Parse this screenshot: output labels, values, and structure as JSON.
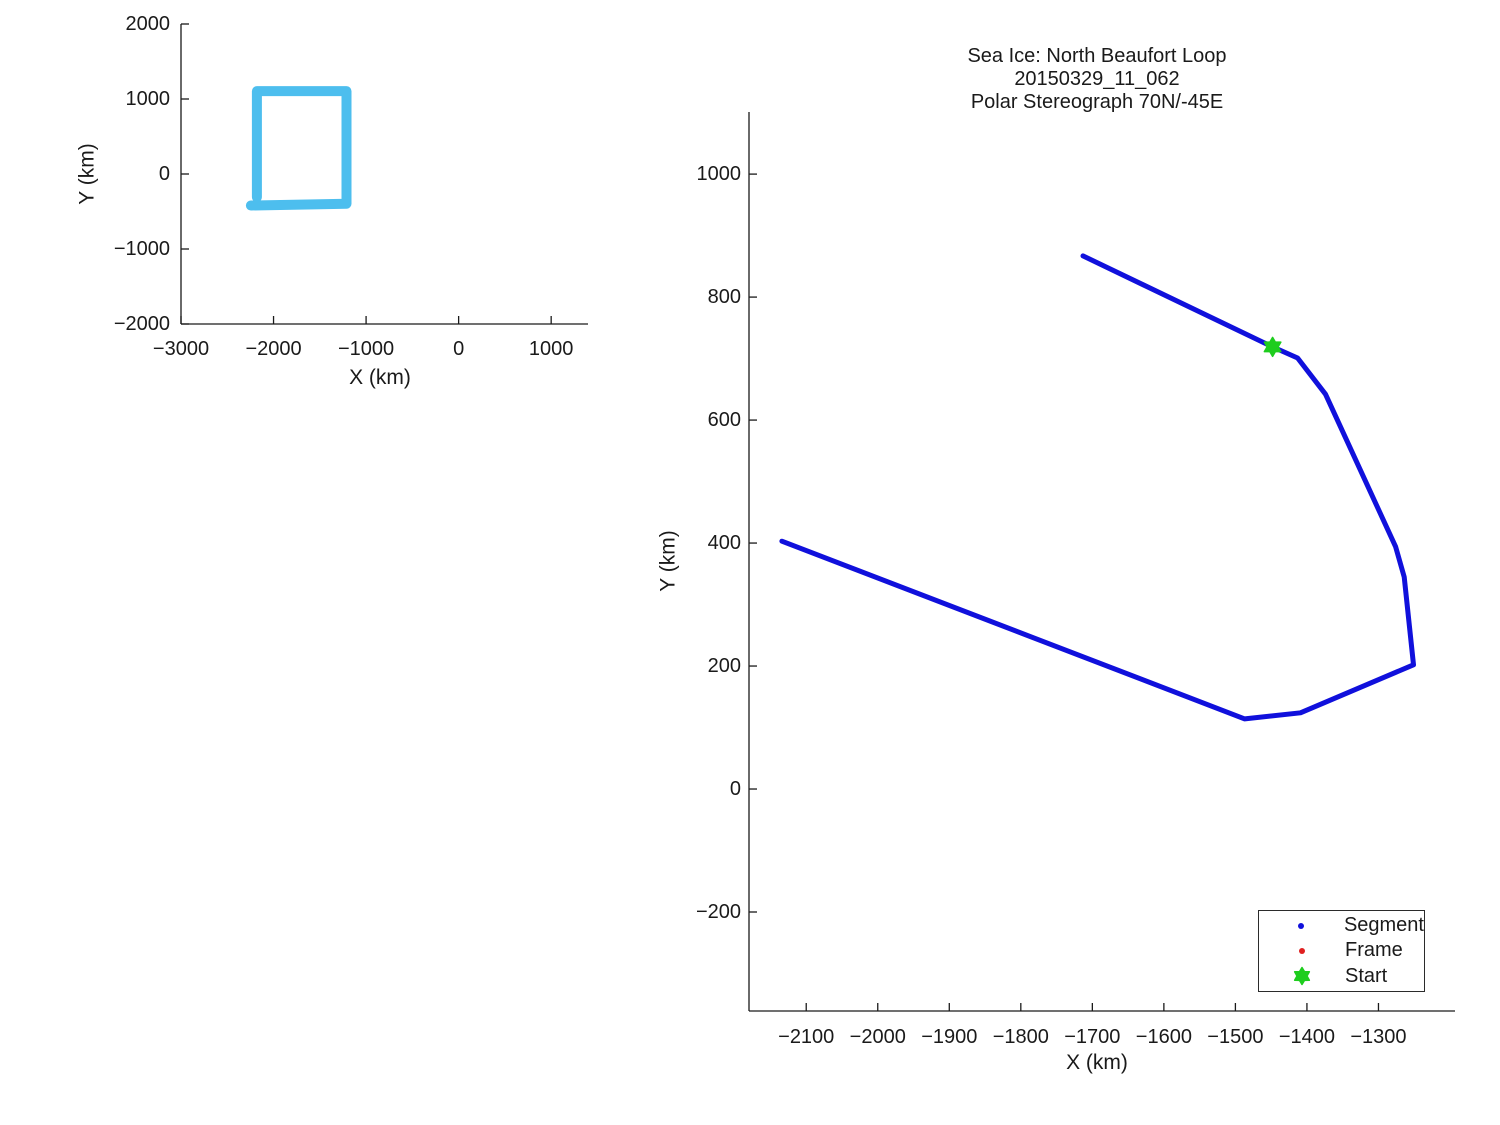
{
  "figure": {
    "background": "#FFFFFF",
    "text_color": "#1A1A1A",
    "axis_color": "#1A1A1A"
  },
  "chart_data": [
    {
      "name": "overview-map",
      "type": "line",
      "xlabel": "X (km)",
      "ylabel": "Y (km)",
      "xlim": [
        -3000,
        1398
      ],
      "ylim": [
        -2000,
        2000
      ],
      "xticks": [
        -3000,
        -2000,
        -1000,
        0,
        1000
      ],
      "xtick_labels": [
        "−3000",
        "−2000",
        "−1000",
        "0",
        "1000"
      ],
      "yticks": [
        2000,
        1000,
        0,
        -1000,
        -2000
      ],
      "ytick_labels": [
        "2000",
        "1000",
        "0",
        "−1000",
        "−2000"
      ],
      "grid": false,
      "legend_position": "none",
      "series": [
        {
          "name": "loop-region-outline",
          "color": "#4DBEEE",
          "linewidth": 10,
          "x": [
            -2180,
            -2180,
            -1212,
            -1212,
            -2245
          ],
          "y": [
            -310,
            1105,
            1105,
            -398,
            -420
          ]
        }
      ]
    },
    {
      "name": "trajectory-plot",
      "type": "line",
      "title": [
        "Sea Ice: North Beaufort Loop",
        "20150329_11_062",
        "Polar Stereograph 70N/-45E"
      ],
      "xlabel": "X (km)",
      "ylabel": "Y (km)",
      "xlim": [
        -2180,
        -1193
      ],
      "ylim": [
        -361,
        1101
      ],
      "xticks": [
        -2100,
        -2000,
        -1900,
        -1800,
        -1700,
        -1600,
        -1500,
        -1400,
        -1300
      ],
      "xtick_labels": [
        "−2100",
        "−2000",
        "−1900",
        "−1800",
        "−1700",
        "−1600",
        "−1500",
        "−1400",
        "−1300"
      ],
      "yticks": [
        1000,
        800,
        600,
        400,
        200,
        0,
        -200
      ],
      "ytick_labels": [
        "1000",
        "800",
        "600",
        "400",
        "200",
        "0",
        "−200"
      ],
      "grid": false,
      "legend_position": "lower right",
      "series": [
        {
          "name": "Segment",
          "color": "#1010DC",
          "linewidth": 5,
          "x": [
            -1713,
            -1448,
            -1413,
            -1374,
            -1276,
            -1264,
            -1251,
            -1409,
            -1487,
            -2134
          ],
          "y": [
            867,
            719,
            701,
            642,
            394,
            345,
            202,
            124,
            114,
            403
          ]
        }
      ],
      "start_marker": {
        "x": -1448,
        "y": 719,
        "color": "#1ECD1E",
        "shape": "hexagram"
      },
      "legend": {
        "items": [
          {
            "label": "Segment",
            "marker": "dot",
            "color": "#1010DC"
          },
          {
            "label": "Frame",
            "marker": "dot",
            "color": "#E02020"
          },
          {
            "label": "Start",
            "marker": "hexagram",
            "color": "#1ECD1E"
          }
        ]
      }
    }
  ]
}
